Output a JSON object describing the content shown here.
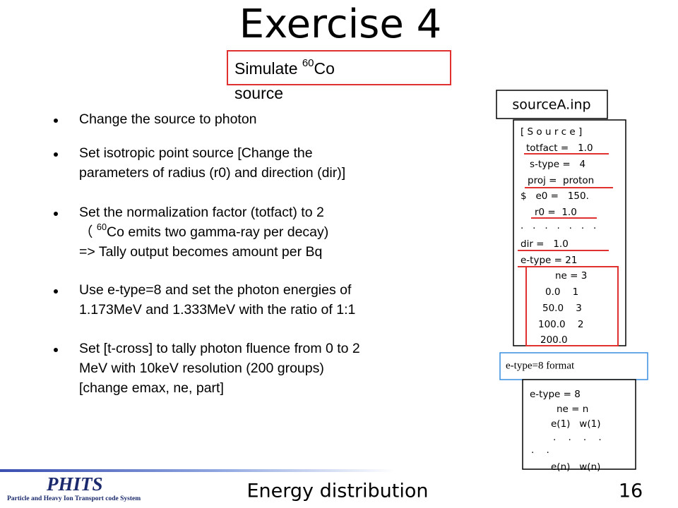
{
  "title": "Exercise 4",
  "subtitle": {
    "lines": [
      [
        {
          "t": "Simulate "
        },
        {
          "sup": "60"
        },
        {
          "t": "Co"
        }
      ],
      [
        {
          "t": "source"
        }
      ]
    ]
  },
  "bullets": [
    [
      [
        {
          "t": "Change the source to photon"
        }
      ]
    ],
    [
      [
        {
          "t": "Set isotropic point source [Change the"
        }
      ],
      [
        {
          "t": "parameters of radius (r0) and direction (dir)]"
        }
      ]
    ],
    [
      [
        {
          "t": "Set the normalization factor (totfact) to 2"
        }
      ],
      [
        {
          "t": "（ "
        },
        {
          "sup": "60"
        },
        {
          "t": "Co emits two gamma-ray per decay)"
        }
      ],
      [
        {
          "t": "=> Tally output becomes amount per Bq"
        }
      ]
    ],
    [
      [
        {
          "t": "Use e-type=8 and set the photon energies of"
        }
      ],
      [
        {
          "t": "1.173MeV and 1.333MeV with the ratio of 1:1"
        }
      ]
    ],
    [
      [
        {
          "t": "Set [t-cross] to tally photon fluence from 0 to 2"
        }
      ],
      [
        {
          "t": "MeV with 10keV resolution (200 groups)"
        }
      ],
      [
        {
          "t": "[change emax, ne, part]"
        }
      ]
    ]
  ],
  "file_label": "sourceA.inp",
  "code_lines": [
    "[ S o u r c e ]",
    "totfact =   1.0",
    "s-type =   4",
    "proj =  proton",
    "$   e0 =   150.",
    "r0 =  1.0",
    ".   .   .   .   .   .   .",
    "dir =   1.0",
    "e-type = 21",
    "ne = 3",
    "0.0    1",
    "50.0    3",
    "100.0    2",
    "200.0"
  ],
  "format_label": "e-type=8 format",
  "format_lines": [
    "e-type = 8",
    "ne = n",
    "e(1)   w(1)",
    ".    .    .    .",
    ".    .",
    "e(n)   w(n)"
  ],
  "logo": {
    "name": "PHITS",
    "tagline": "Particle and Heavy Ion Transport code System"
  },
  "footer": "Energy distribution",
  "page_number": "16"
}
